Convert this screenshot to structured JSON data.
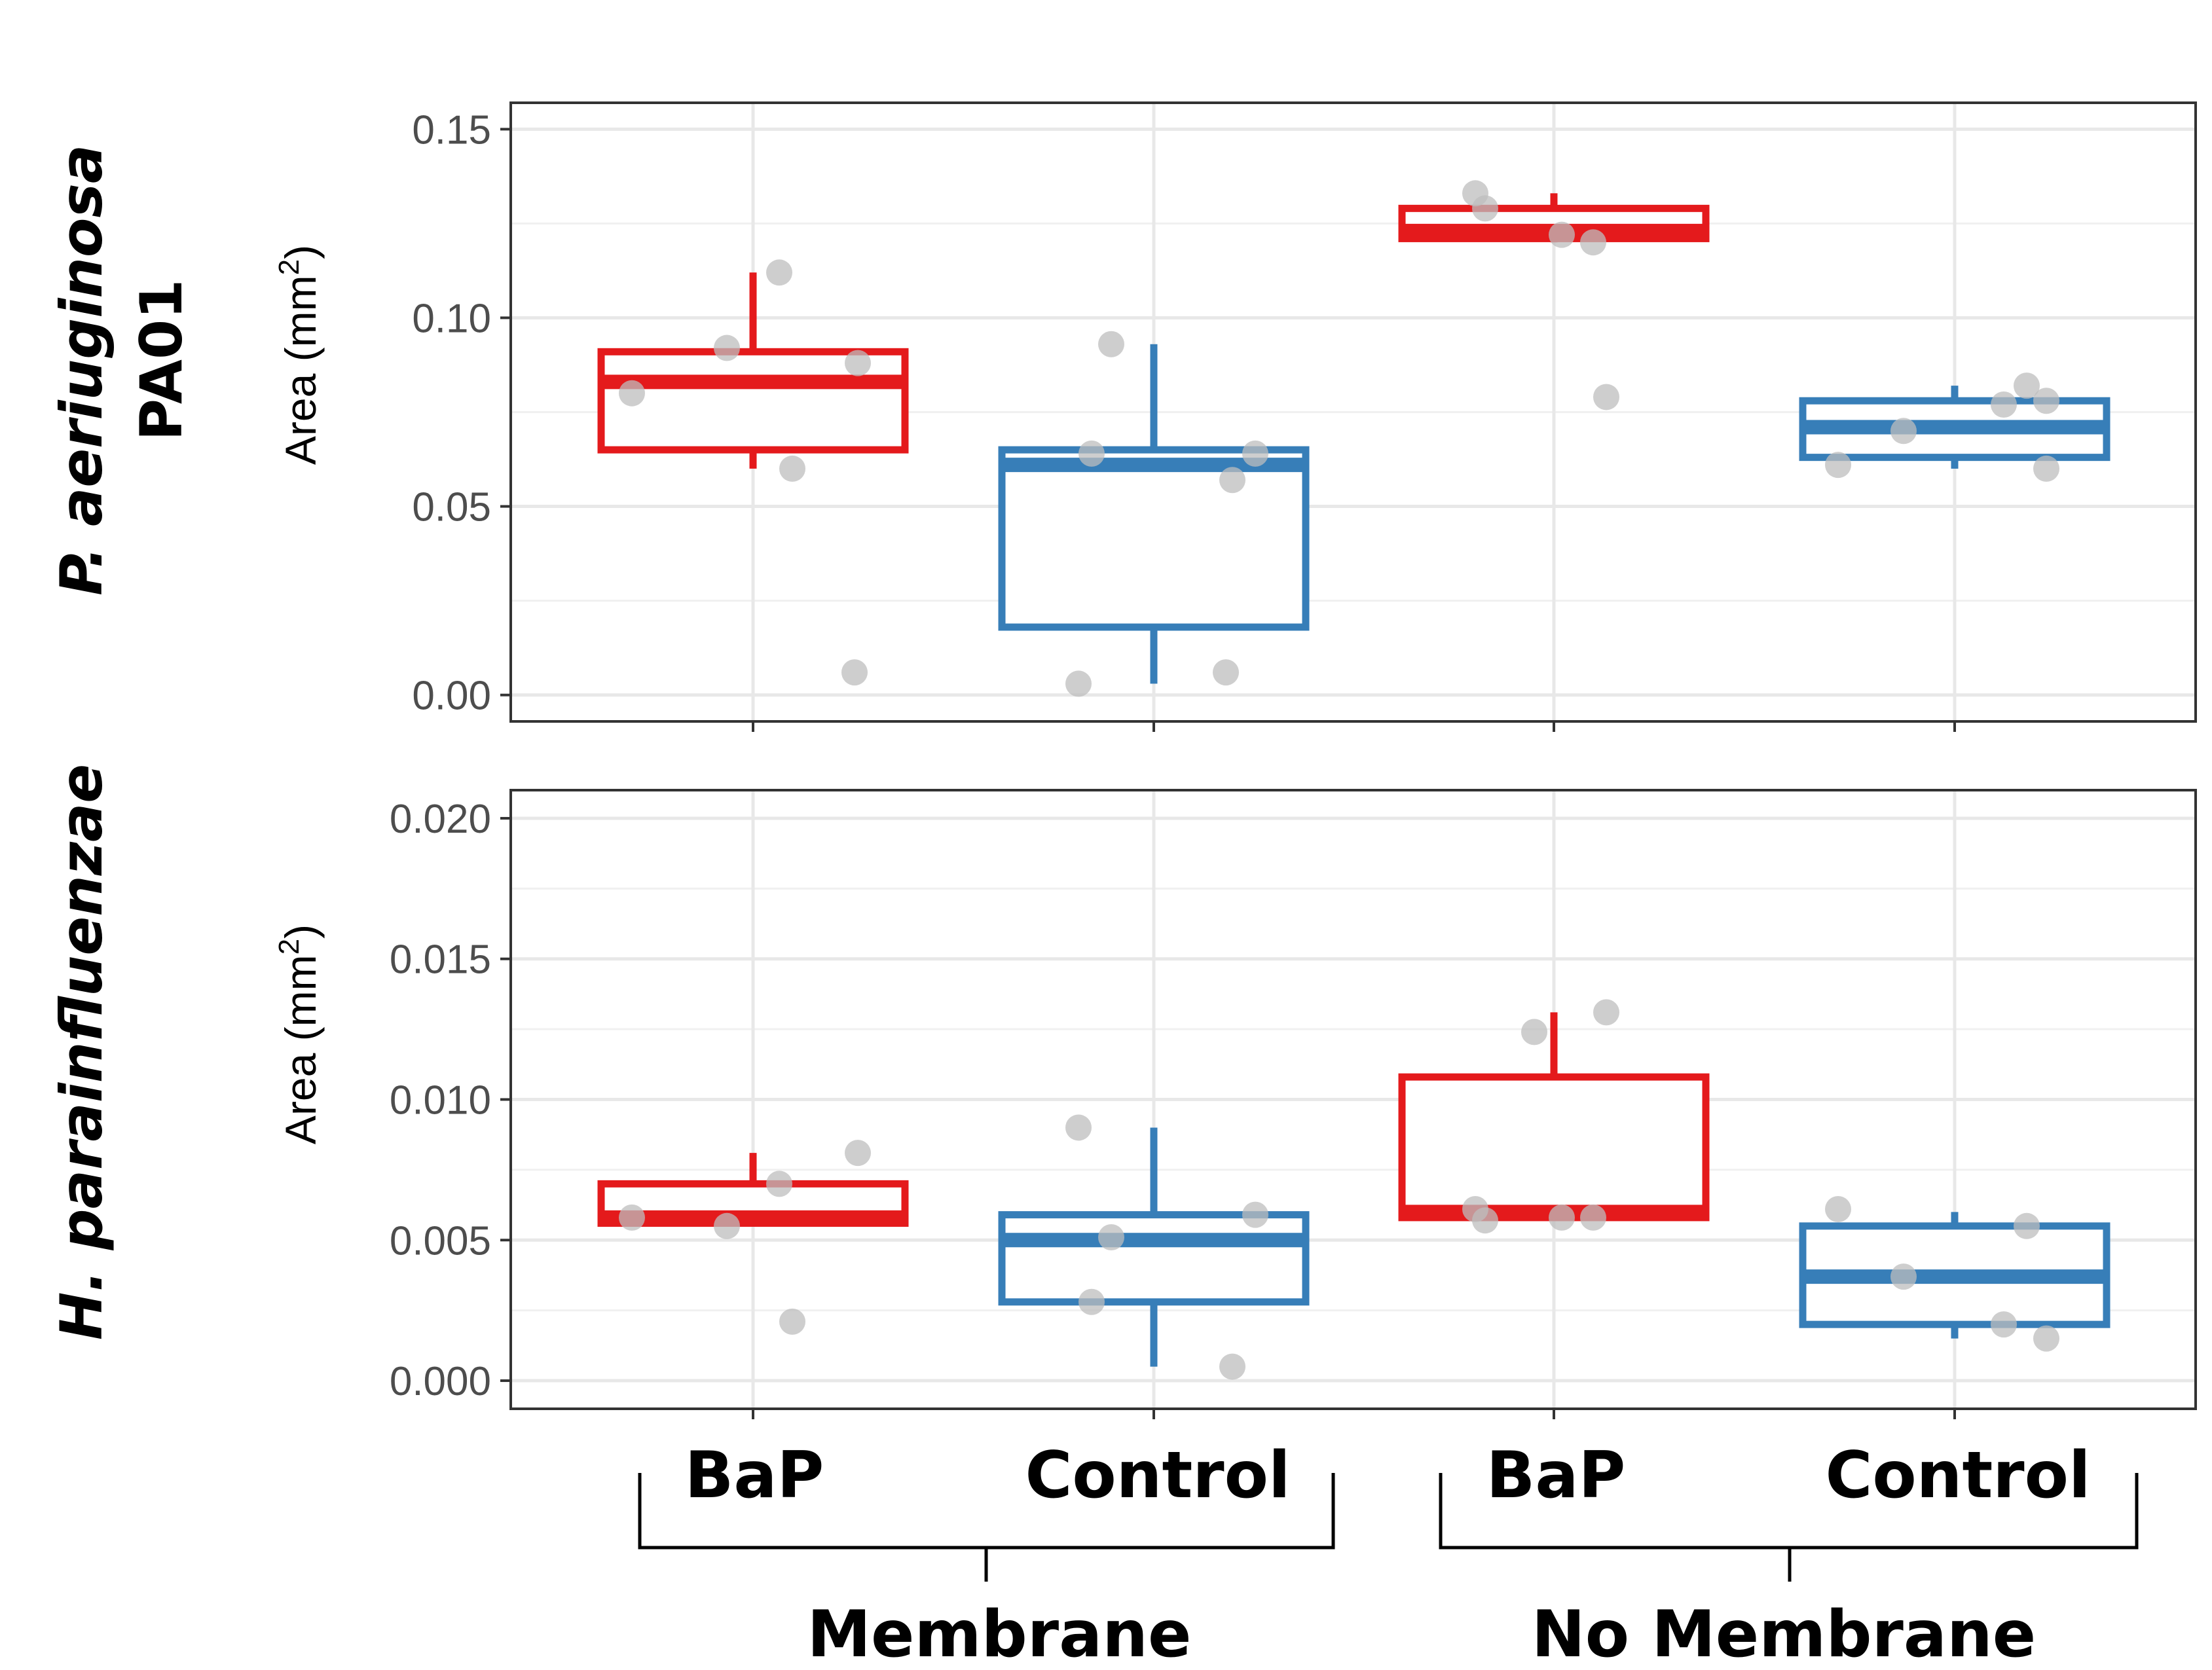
{
  "chart_data": [
    {
      "type": "box",
      "panel_label": [
        "P. aeriuginosa",
        "PA01"
      ],
      "ylabel": "Area (mm",
      "ylabel_sup": "2",
      "ylabel_close": ")",
      "ylim": [
        -0.007,
        0.157
      ],
      "yticks": [
        "0.00",
        "0.05",
        "0.10",
        "0.15"
      ],
      "ytick_values": [
        0.0,
        0.05,
        0.1,
        0.15
      ],
      "grid": true,
      "series": [
        {
          "category": "BaP",
          "group": "Membrane",
          "color": "#e41a1c",
          "whisker_low": 0.06,
          "q1": 0.065,
          "median": 0.083,
          "q3": 0.091,
          "whisker_high": 0.112,
          "points": [
            0.08,
            0.092,
            0.112,
            0.088,
            0.06,
            0.006
          ]
        },
        {
          "category": "Control",
          "group": "Membrane",
          "color": "#377eb8",
          "whisker_low": 0.003,
          "q1": 0.018,
          "median": 0.061,
          "q3": 0.065,
          "whisker_high": 0.093,
          "points": [
            0.093,
            0.064,
            0.057,
            0.064,
            0.003,
            0.006
          ]
        },
        {
          "category": "BaP",
          "group": "No Membrane",
          "color": "#e41a1c",
          "whisker_low": 0.12,
          "q1": 0.121,
          "median": 0.123,
          "q3": 0.129,
          "whisker_high": 0.133,
          "points": [
            0.133,
            0.122,
            0.129,
            0.12,
            0.079
          ]
        },
        {
          "category": "Control",
          "group": "No Membrane",
          "color": "#377eb8",
          "whisker_low": 0.06,
          "q1": 0.063,
          "median": 0.071,
          "q3": 0.078,
          "whisker_high": 0.082,
          "points": [
            0.061,
            0.07,
            0.082,
            0.077,
            0.078,
            0.06
          ]
        }
      ]
    },
    {
      "type": "box",
      "panel_label": [
        "H. parainfluenzae"
      ],
      "ylabel": "Area (mm",
      "ylabel_sup": "2",
      "ylabel_close": ")",
      "ylim": [
        -0.001,
        0.021
      ],
      "yticks": [
        "0.000",
        "0.005",
        "0.010",
        "0.015",
        "0.020"
      ],
      "ytick_values": [
        0.0,
        0.005,
        0.01,
        0.015,
        0.02
      ],
      "grid": true,
      "series": [
        {
          "category": "BaP",
          "group": "Membrane",
          "color": "#e41a1c",
          "whisker_low": 0.0055,
          "q1": 0.0056,
          "median": 0.0058,
          "q3": 0.007,
          "whisker_high": 0.0081,
          "points": [
            0.0058,
            0.0055,
            0.007,
            0.0081,
            0.0021
          ]
        },
        {
          "category": "Control",
          "group": "Membrane",
          "color": "#377eb8",
          "whisker_low": 0.0005,
          "q1": 0.0028,
          "median": 0.005,
          "q3": 0.0059,
          "whisker_high": 0.009,
          "points": [
            0.0051,
            0.0028,
            0.0005,
            0.0059,
            0.009
          ]
        },
        {
          "category": "BaP",
          "group": "No Membrane",
          "color": "#e41a1c",
          "whisker_low": 0.0058,
          "q1": 0.0058,
          "median": 0.006,
          "q3": 0.0108,
          "whisker_high": 0.0131,
          "points": [
            0.0061,
            0.0058,
            0.0057,
            0.0058,
            0.0131,
            0.0124
          ]
        },
        {
          "category": "Control",
          "group": "No Membrane",
          "color": "#377eb8",
          "whisker_low": 0.0015,
          "q1": 0.002,
          "median": 0.0037,
          "q3": 0.0055,
          "whisker_high": 0.006,
          "points": [
            0.0061,
            0.0037,
            0.0055,
            0.002,
            0.0015
          ]
        }
      ]
    }
  ],
  "x_categories": [
    "BaP",
    "Control",
    "BaP",
    "Control"
  ],
  "groups": [
    "Membrane",
    "No Membrane"
  ]
}
